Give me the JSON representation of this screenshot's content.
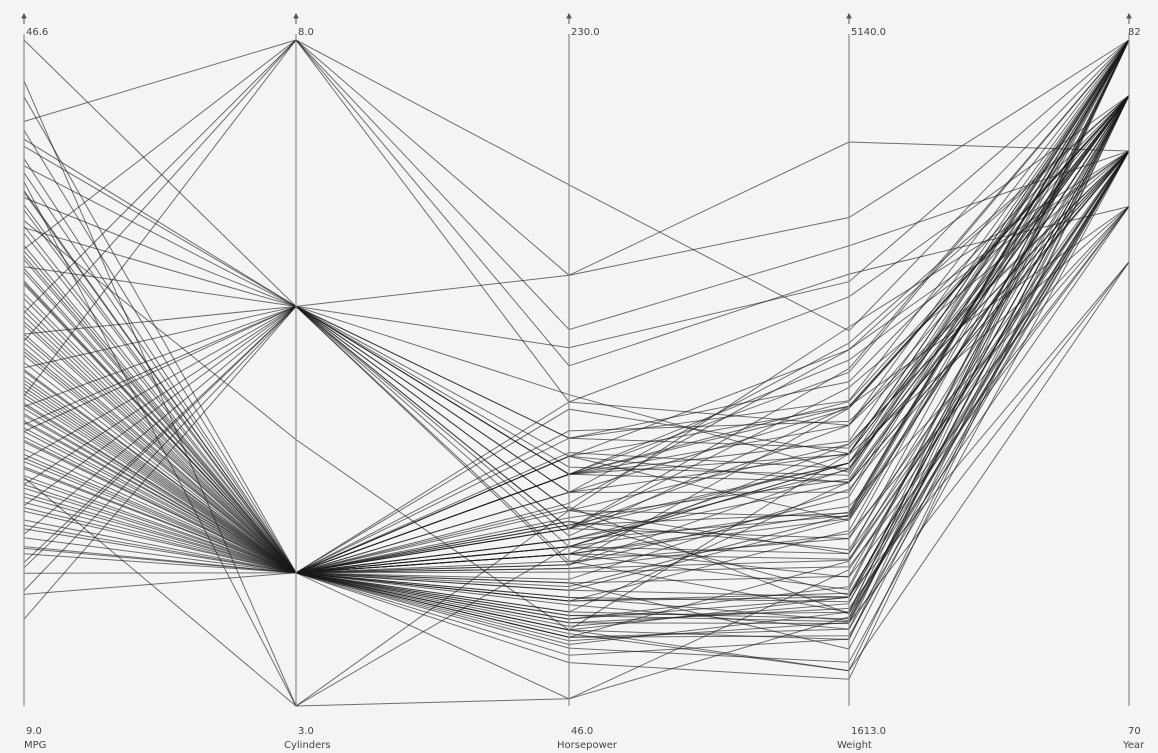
{
  "chart_data": {
    "type": "parallel-coordinates",
    "title": "",
    "line_color": "#1a1a1a",
    "background": "#f4f4f4",
    "axes": [
      {
        "name": "MPG",
        "min": 9.0,
        "max": 46.6,
        "min_label": "9.0",
        "max_label": "46.6"
      },
      {
        "name": "Cylinders",
        "min": 3.0,
        "max": 8.0,
        "min_label": "3.0",
        "max_label": "8.0"
      },
      {
        "name": "Horsepower",
        "min": 46.0,
        "max": 230.0,
        "min_label": "46.0",
        "max_label": "230.0"
      },
      {
        "name": "Weight",
        "min": 1613.0,
        "max": 5140.0,
        "min_label": "1613.0",
        "max_label": "5140.0"
      },
      {
        "name": "Year",
        "min": 70,
        "max": 82,
        "min_label": "70",
        "max_label": "82"
      }
    ],
    "records": [
      [
        44.3,
        3,
        48,
        2085,
        80
      ],
      [
        43.4,
        4,
        48,
        2335,
        80
      ],
      [
        41.5,
        4,
        67,
        2190,
        81
      ],
      [
        39.1,
        4,
        58,
        1755,
        81
      ],
      [
        38.0,
        4,
        67,
        1965,
        82
      ],
      [
        37.3,
        4,
        69,
        2130,
        79
      ],
      [
        36.1,
        4,
        66,
        1800,
        78
      ],
      [
        35.0,
        4,
        69,
        2050,
        81
      ],
      [
        34.4,
        4,
        65,
        1985,
        80
      ],
      [
        33.5,
        4,
        72,
        2075,
        82
      ],
      [
        32.8,
        4,
        63,
        2110,
        82
      ],
      [
        32.0,
        4,
        65,
        2020,
        80
      ],
      [
        31.6,
        4,
        70,
        2245,
        82
      ],
      [
        31.0,
        4,
        71,
        2110,
        82
      ],
      [
        30.5,
        4,
        78,
        2190,
        81
      ],
      [
        30.0,
        4,
        67,
        1800,
        81
      ],
      [
        29.8,
        4,
        62,
        1845,
        80
      ],
      [
        29.0,
        4,
        75,
        2190,
        81
      ],
      [
        28.4,
        4,
        90,
        2670,
        79
      ],
      [
        27.9,
        4,
        85,
        2870,
        82
      ],
      [
        27.2,
        4,
        96,
        2900,
        80
      ],
      [
        26.8,
        4,
        115,
        2595,
        81
      ],
      [
        26.0,
        4,
        88,
        2605,
        82
      ],
      [
        25.4,
        4,
        92,
        2795,
        80
      ],
      [
        25.0,
        4,
        98,
        2815,
        81
      ],
      [
        24.5,
        4,
        90,
        2950,
        82
      ],
      [
        24.0,
        4,
        92,
        2865,
        81
      ],
      [
        23.5,
        4,
        110,
        2945,
        79
      ],
      [
        23.0,
        4,
        86,
        2500,
        80
      ],
      [
        22.5,
        4,
        97,
        2200,
        78
      ],
      [
        22.0,
        4,
        110,
        2800,
        81
      ],
      [
        21.5,
        4,
        85,
        2720,
        82
      ],
      [
        21.0,
        4,
        115,
        2795,
        80
      ],
      [
        20.5,
        4,
        95,
        2900,
        82
      ],
      [
        20.0,
        4,
        110,
        3200,
        79
      ],
      [
        19.5,
        4,
        96,
        2635,
        82
      ],
      [
        19.0,
        4,
        88,
        3000,
        80
      ],
      [
        18.5,
        4,
        120,
        2979,
        81
      ],
      [
        18.0,
        4,
        95,
        2500,
        82
      ],
      [
        17.6,
        4,
        101,
        2100,
        80
      ],
      [
        16.5,
        4,
        116,
        2870,
        81
      ],
      [
        15.3,
        4,
        95,
        3100,
        82
      ],
      [
        35.7,
        4,
        80,
        1915,
        81
      ],
      [
        36.4,
        5,
        67,
        2950,
        81
      ],
      [
        33.7,
        4,
        75,
        2210,
        80
      ],
      [
        31.3,
        4,
        75,
        2542,
        82
      ],
      [
        27.4,
        4,
        80,
        2300,
        81
      ],
      [
        28.0,
        4,
        79,
        2625,
        82
      ],
      [
        26.6,
        4,
        72,
        2800,
        81
      ],
      [
        34.2,
        4,
        70,
        2188,
        80
      ],
      [
        32.9,
        4,
        100,
        2615,
        81
      ],
      [
        24.2,
        4,
        84,
        2525,
        79
      ],
      [
        25.8,
        4,
        92,
        2620,
        82
      ],
      [
        29.5,
        4,
        71,
        2060,
        81
      ],
      [
        33.0,
        4,
        83,
        2350,
        79
      ],
      [
        22.4,
        4,
        64,
        2055,
        78
      ],
      [
        23.9,
        4,
        90,
        2420,
        82
      ],
      [
        28.8,
        4,
        84,
        2385,
        81
      ],
      [
        37.0,
        4,
        88,
        2390,
        80
      ],
      [
        38.1,
        4,
        60,
        1968,
        81
      ],
      [
        26.4,
        4,
        105,
        2745,
        82
      ],
      [
        24.7,
        4,
        81,
        2760,
        80
      ],
      [
        21.8,
        4,
        88,
        2640,
        82
      ],
      [
        20.2,
        4,
        97,
        2440,
        81
      ],
      [
        19.2,
        4,
        90,
        2295,
        79
      ],
      [
        23.2,
        4,
        68,
        2155,
        82
      ],
      [
        25.5,
        4,
        76,
        2165,
        80
      ],
      [
        27.0,
        4,
        74,
        2020,
        82
      ],
      [
        29.2,
        4,
        76,
        2065,
        81
      ],
      [
        30.7,
        4,
        65,
        2380,
        80
      ],
      [
        32.3,
        4,
        78,
        2600,
        81
      ],
      [
        34.7,
        4,
        88,
        2230,
        82
      ],
      [
        26.1,
        4,
        110,
        3100,
        81
      ],
      [
        22.8,
        4,
        105,
        2950,
        82
      ],
      [
        25.1,
        4,
        122,
        3120,
        80
      ],
      [
        21.3,
        4,
        110,
        3225,
        81
      ],
      [
        17.9,
        4,
        130,
        3100,
        80
      ],
      [
        46.6,
        6,
        86,
        2110,
        80
      ],
      [
        41.0,
        6,
        112,
        2835,
        82
      ],
      [
        40.6,
        6,
        105,
        3190,
        81
      ],
      [
        39.5,
        6,
        95,
        3300,
        80
      ],
      [
        37.7,
        6,
        110,
        3380,
        82
      ],
      [
        36.0,
        6,
        115,
        3500,
        81
      ],
      [
        33.8,
        6,
        100,
        3000,
        80
      ],
      [
        30.0,
        6,
        120,
        3230,
        82
      ],
      [
        28.1,
        6,
        85,
        3190,
        81
      ],
      [
        25.9,
        6,
        90,
        2900,
        80
      ],
      [
        24.5,
        6,
        110,
        3015,
        82
      ],
      [
        22.9,
        6,
        105,
        3535,
        81
      ],
      [
        21.5,
        6,
        100,
        3620,
        80
      ],
      [
        20.3,
        6,
        95,
        3400,
        82
      ],
      [
        18.7,
        6,
        93,
        3200,
        81
      ],
      [
        16.8,
        6,
        110,
        3445,
        80
      ],
      [
        15.5,
        6,
        145,
        3860,
        82
      ],
      [
        13.9,
        6,
        120,
        3330,
        81
      ],
      [
        42.0,
        8,
        150,
        4050,
        80
      ],
      [
        34.8,
        8,
        140,
        3900,
        79
      ],
      [
        26.5,
        8,
        165,
        4200,
        82
      ],
      [
        31.2,
        8,
        130,
        3780,
        81
      ],
      [
        38.6,
        3,
        100,
        2420,
        80
      ],
      [
        21.9,
        3,
        90,
        2900,
        81
      ],
      [
        29.6,
        8,
        190,
        3600,
        82
      ],
      [
        17.1,
        6,
        165,
        4600,
        80
      ],
      [
        20.8,
        4,
        115,
        3200,
        81
      ],
      [
        24.9,
        6,
        132,
        2850,
        82
      ],
      [
        39.9,
        4,
        128,
        2950,
        81
      ],
      [
        27.6,
        4,
        102,
        3500,
        80
      ]
    ]
  }
}
